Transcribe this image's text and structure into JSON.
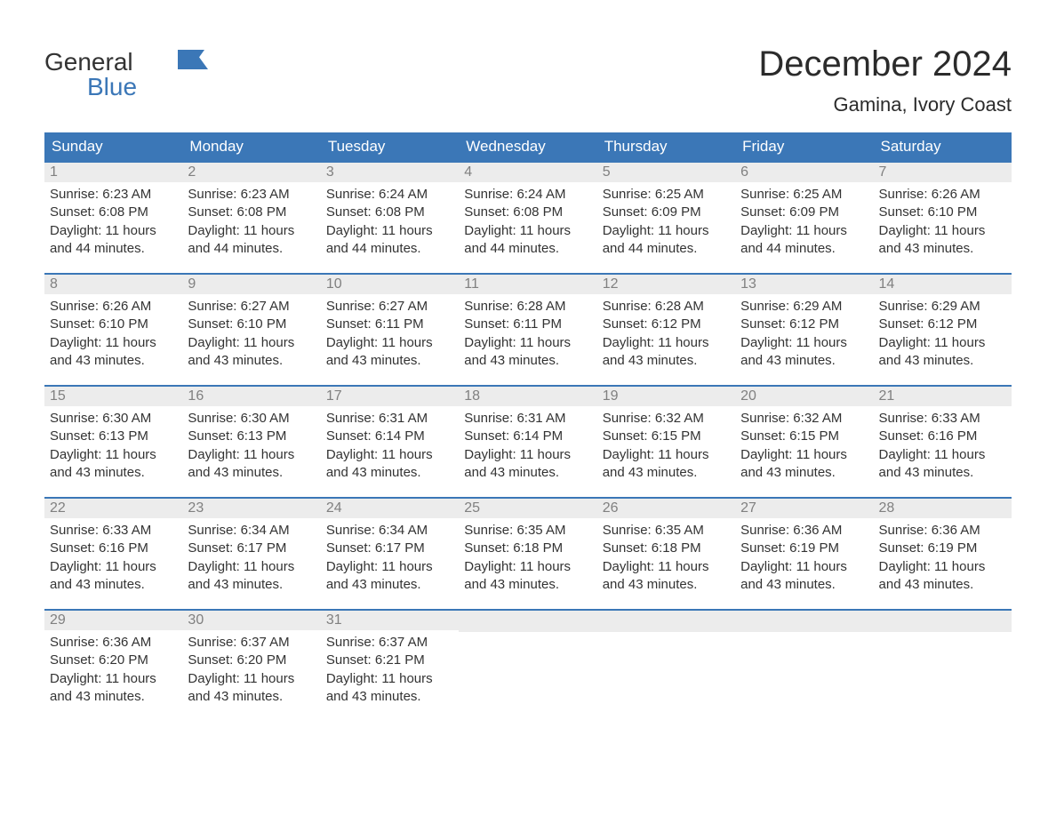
{
  "brand": {
    "line1": "General",
    "line2": "Blue",
    "flag_color": "#3b77b7"
  },
  "title": "December 2024",
  "location": "Gamina, Ivory Coast",
  "colors": {
    "header_bg": "#3b77b7",
    "header_text": "#ffffff",
    "daynum_bg": "#ececec",
    "daynum_text": "#808080",
    "body_text": "#333333",
    "row_border": "#3b77b7",
    "page_bg": "#ffffff"
  },
  "typography": {
    "title_fontsize": 40,
    "location_fontsize": 22,
    "weekday_fontsize": 17,
    "daynum_fontsize": 16,
    "body_fontsize": 15,
    "logo_fontsize": 28
  },
  "weekdays": [
    "Sunday",
    "Monday",
    "Tuesday",
    "Wednesday",
    "Thursday",
    "Friday",
    "Saturday"
  ],
  "labels": {
    "sunrise": "Sunrise",
    "sunset": "Sunset",
    "daylight": "Daylight"
  },
  "days": [
    {
      "n": 1,
      "sunrise": "6:23 AM",
      "sunset": "6:08 PM",
      "daylight": "11 hours and 44 minutes."
    },
    {
      "n": 2,
      "sunrise": "6:23 AM",
      "sunset": "6:08 PM",
      "daylight": "11 hours and 44 minutes."
    },
    {
      "n": 3,
      "sunrise": "6:24 AM",
      "sunset": "6:08 PM",
      "daylight": "11 hours and 44 minutes."
    },
    {
      "n": 4,
      "sunrise": "6:24 AM",
      "sunset": "6:08 PM",
      "daylight": "11 hours and 44 minutes."
    },
    {
      "n": 5,
      "sunrise": "6:25 AM",
      "sunset": "6:09 PM",
      "daylight": "11 hours and 44 minutes."
    },
    {
      "n": 6,
      "sunrise": "6:25 AM",
      "sunset": "6:09 PM",
      "daylight": "11 hours and 44 minutes."
    },
    {
      "n": 7,
      "sunrise": "6:26 AM",
      "sunset": "6:10 PM",
      "daylight": "11 hours and 43 minutes."
    },
    {
      "n": 8,
      "sunrise": "6:26 AM",
      "sunset": "6:10 PM",
      "daylight": "11 hours and 43 minutes."
    },
    {
      "n": 9,
      "sunrise": "6:27 AM",
      "sunset": "6:10 PM",
      "daylight": "11 hours and 43 minutes."
    },
    {
      "n": 10,
      "sunrise": "6:27 AM",
      "sunset": "6:11 PM",
      "daylight": "11 hours and 43 minutes."
    },
    {
      "n": 11,
      "sunrise": "6:28 AM",
      "sunset": "6:11 PM",
      "daylight": "11 hours and 43 minutes."
    },
    {
      "n": 12,
      "sunrise": "6:28 AM",
      "sunset": "6:12 PM",
      "daylight": "11 hours and 43 minutes."
    },
    {
      "n": 13,
      "sunrise": "6:29 AM",
      "sunset": "6:12 PM",
      "daylight": "11 hours and 43 minutes."
    },
    {
      "n": 14,
      "sunrise": "6:29 AM",
      "sunset": "6:12 PM",
      "daylight": "11 hours and 43 minutes."
    },
    {
      "n": 15,
      "sunrise": "6:30 AM",
      "sunset": "6:13 PM",
      "daylight": "11 hours and 43 minutes."
    },
    {
      "n": 16,
      "sunrise": "6:30 AM",
      "sunset": "6:13 PM",
      "daylight": "11 hours and 43 minutes."
    },
    {
      "n": 17,
      "sunrise": "6:31 AM",
      "sunset": "6:14 PM",
      "daylight": "11 hours and 43 minutes."
    },
    {
      "n": 18,
      "sunrise": "6:31 AM",
      "sunset": "6:14 PM",
      "daylight": "11 hours and 43 minutes."
    },
    {
      "n": 19,
      "sunrise": "6:32 AM",
      "sunset": "6:15 PM",
      "daylight": "11 hours and 43 minutes."
    },
    {
      "n": 20,
      "sunrise": "6:32 AM",
      "sunset": "6:15 PM",
      "daylight": "11 hours and 43 minutes."
    },
    {
      "n": 21,
      "sunrise": "6:33 AM",
      "sunset": "6:16 PM",
      "daylight": "11 hours and 43 minutes."
    },
    {
      "n": 22,
      "sunrise": "6:33 AM",
      "sunset": "6:16 PM",
      "daylight": "11 hours and 43 minutes."
    },
    {
      "n": 23,
      "sunrise": "6:34 AM",
      "sunset": "6:17 PM",
      "daylight": "11 hours and 43 minutes."
    },
    {
      "n": 24,
      "sunrise": "6:34 AM",
      "sunset": "6:17 PM",
      "daylight": "11 hours and 43 minutes."
    },
    {
      "n": 25,
      "sunrise": "6:35 AM",
      "sunset": "6:18 PM",
      "daylight": "11 hours and 43 minutes."
    },
    {
      "n": 26,
      "sunrise": "6:35 AM",
      "sunset": "6:18 PM",
      "daylight": "11 hours and 43 minutes."
    },
    {
      "n": 27,
      "sunrise": "6:36 AM",
      "sunset": "6:19 PM",
      "daylight": "11 hours and 43 minutes."
    },
    {
      "n": 28,
      "sunrise": "6:36 AM",
      "sunset": "6:19 PM",
      "daylight": "11 hours and 43 minutes."
    },
    {
      "n": 29,
      "sunrise": "6:36 AM",
      "sunset": "6:20 PM",
      "daylight": "11 hours and 43 minutes."
    },
    {
      "n": 30,
      "sunrise": "6:37 AM",
      "sunset": "6:20 PM",
      "daylight": "11 hours and 43 minutes."
    },
    {
      "n": 31,
      "sunrise": "6:37 AM",
      "sunset": "6:21 PM",
      "daylight": "11 hours and 43 minutes."
    }
  ],
  "grid": {
    "first_weekday_index": 0,
    "rows": 5,
    "cols": 7
  }
}
